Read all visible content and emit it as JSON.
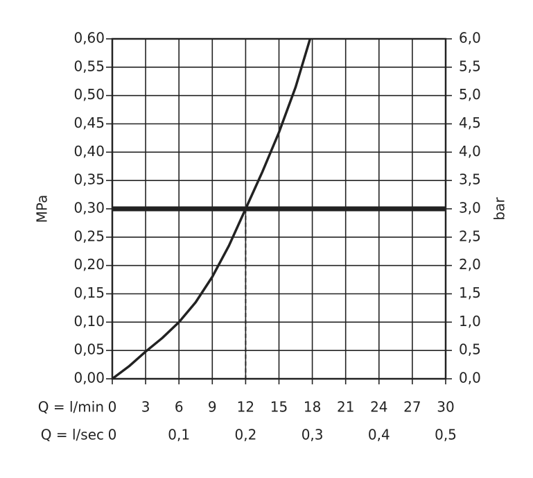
{
  "chart_data": {
    "type": "line",
    "ylabel": "MPa",
    "y2label": "bar",
    "xlabel": "Q = l/min",
    "x2label": "Q = l/sec",
    "xlim": [
      0,
      30
    ],
    "xticks": [
      0,
      3,
      6,
      9,
      12,
      15,
      18,
      21,
      24,
      27,
      30
    ],
    "x2lim": [
      0,
      0.5
    ],
    "x2ticks": [
      0,
      {
        "value": 0.1,
        "label": "0,1"
      },
      {
        "value": 0.2,
        "label": "0,2"
      },
      {
        "value": 0.3,
        "label": "0,3"
      },
      {
        "value": 0.4,
        "label": "0,4"
      },
      {
        "value": 0.5,
        "label": "0,5"
      }
    ],
    "ylim": [
      0,
      0.6
    ],
    "yticks": [
      {
        "value": 0,
        "label": "0,00"
      },
      {
        "value": 0.05,
        "label": "0,05"
      },
      {
        "value": 0.1,
        "label": "0,10"
      },
      {
        "value": 0.15,
        "label": "0,15"
      },
      {
        "value": 0.2,
        "label": "0,20"
      },
      {
        "value": 0.25,
        "label": "0,25"
      },
      {
        "value": 0.3,
        "label": "0,30"
      },
      {
        "value": 0.35,
        "label": "0,35"
      },
      {
        "value": 0.4,
        "label": "0,40"
      },
      {
        "value": 0.45,
        "label": "0,45"
      },
      {
        "value": 0.5,
        "label": "0,50"
      },
      {
        "value": 0.55,
        "label": "0,55"
      },
      {
        "value": 0.6,
        "label": "0,60"
      }
    ],
    "y2lim": [
      0,
      6
    ],
    "y2ticks": [
      {
        "value": 0,
        "label": "0,0"
      },
      {
        "value": 0.5,
        "label": "0,5"
      },
      {
        "value": 1,
        "label": "1,0"
      },
      {
        "value": 1.5,
        "label": "1,5"
      },
      {
        "value": 2,
        "label": "2,0"
      },
      {
        "value": 2.5,
        "label": "2,5"
      },
      {
        "value": 3,
        "label": "3,0"
      },
      {
        "value": 3.5,
        "label": "3,5"
      },
      {
        "value": 4,
        "label": "4,0"
      },
      {
        "value": 4.5,
        "label": "4,5"
      },
      {
        "value": 5,
        "label": "5,0"
      },
      {
        "value": 5.5,
        "label": "5,5"
      },
      {
        "value": 6,
        "label": "6,0"
      }
    ],
    "grid": true,
    "series": [
      {
        "color": "#222222",
        "x": [
          0,
          1.5,
          3,
          4.5,
          6,
          7.5,
          9,
          10.5,
          12,
          13.5,
          15,
          16.5,
          17.8
        ],
        "values": [
          0,
          0.022,
          0.048,
          0.072,
          0.1,
          0.135,
          0.18,
          0.235,
          0.3,
          0.365,
          0.435,
          0.515,
          0.6
        ]
      }
    ],
    "reference_line": {
      "y": 0.3
    },
    "operating_point": {
      "x": 12,
      "y": 0.3
    }
  }
}
